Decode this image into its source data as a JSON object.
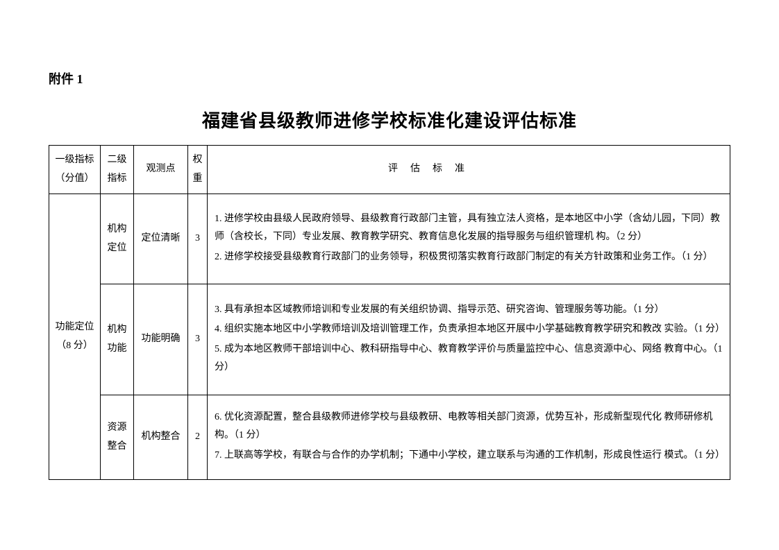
{
  "attachment_label": "附件 1",
  "title": "福建省县级教师进修学校标准化建设评估标准",
  "headers": {
    "level1": "一级指标（分值）",
    "level2": "二级指标",
    "obs": "观测点",
    "weight": "权重",
    "criteria": "评估标准"
  },
  "level1_group": {
    "name": "功能定位",
    "score": "（8 分）"
  },
  "rows": [
    {
      "level2": "机构定位",
      "obs": "定位清晰",
      "weight": "3",
      "criteria_items": [
        "1.  进修学校由县级人民政府领导、县级教育行政部门主管，具有独立法人资格，是本地区中小学（含幼儿园，下同）教师（含校长，下同）专业发展、教育教学研究、教育信息化发展的指导服务与组织管理机 构。（2 分）",
        "2. 进修学校接受县级教育行政部门的业务领导，积极贯彻落实教育行政部门制定的有关方针政策和业务工作。（1 分）"
      ]
    },
    {
      "level2": "机构功能",
      "obs": "功能明确",
      "weight": "3",
      "criteria_items": [
        "3.  具有承担本区域教师培训和专业发展的有关组织协调、指导示范、研究咨询、管理服务等功能。（1 分）",
        "4.  组织实施本地区中小学教师培训及培训管理工作，负责承担本地区开展中小学基础教育教学研究和教改 实验。（1 分）",
        "5.  成为本地区教师干部培训中心、教科研指导中心、教育教学评价与质量监控中心、信息资源中心、网络 教育中心。（1 分）"
      ]
    },
    {
      "level2": "资源整合",
      "obs": "机构整合",
      "weight": "2",
      "criteria_items": [
        "6.  优化资源配置，整合县级教师进修学校与县级教研、电教等相关部门资源，优势互补，形成新型现代化 教师研修机构。（1 分）",
        "7.  上联高等学校，有联合与合作的办学机制；下通中小学校，建立联系与沟通的工作机制，形成良性运行 模式。（1 分）"
      ]
    }
  ],
  "colors": {
    "text": "#000000",
    "background": "#ffffff",
    "border": "#000000"
  }
}
